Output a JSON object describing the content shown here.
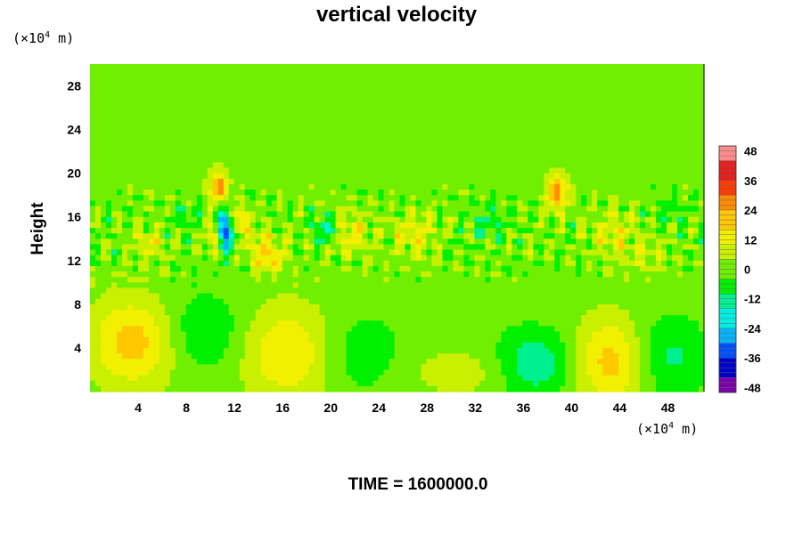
{
  "chart_data": {
    "type": "heatmap",
    "title": "vertical velocity",
    "ylabel": "Height",
    "x_unit": {
      "prefix": "(×10",
      "exp": "4",
      "suffix": " m)"
    },
    "y_unit": {
      "prefix": "(×10",
      "exp": "4",
      "suffix": " m)"
    },
    "xlim": [
      0,
      51
    ],
    "ylim": [
      0,
      30
    ],
    "x_ticks": [
      4,
      8,
      12,
      16,
      20,
      24,
      28,
      32,
      36,
      40,
      44,
      48
    ],
    "y_ticks": [
      4,
      8,
      12,
      16,
      20,
      24,
      28
    ],
    "colorbar": {
      "range": [
        -50,
        50
      ],
      "ticks": [
        48,
        36,
        24,
        12,
        0,
        -12,
        -24,
        -36,
        -48
      ],
      "colors_low_to_high": [
        "#7a00a8",
        "#0000c8",
        "#0050ff",
        "#00b4ff",
        "#00f0e6",
        "#00f090",
        "#00f000",
        "#70f000",
        "#c8f000",
        "#f0f000",
        "#ffc800",
        "#ff8c00",
        "#ff3c00",
        "#e61e1e",
        "#ff8c8c"
      ]
    },
    "field": {
      "background": 0,
      "blobs": [
        {
          "x": 3.5,
          "y": 4.5,
          "v": 20,
          "sx": 2.4,
          "sy": 2.8
        },
        {
          "x": 9.5,
          "y": 5.5,
          "v": -10,
          "sx": 2.2,
          "sy": 2.4
        },
        {
          "x": 16.5,
          "y": 3.5,
          "v": 17,
          "sx": 2.6,
          "sy": 3.0
        },
        {
          "x": 22.5,
          "y": 3.5,
          "v": -8,
          "sx": 2.6,
          "sy": 2.6
        },
        {
          "x": 31.0,
          "y": 1.8,
          "v": 7,
          "sx": 3.5,
          "sy": 1.6
        },
        {
          "x": 37.0,
          "y": 2.5,
          "v": -16,
          "sx": 2.4,
          "sy": 2.2
        },
        {
          "x": 43.5,
          "y": 2.8,
          "v": 22,
          "sx": 2.3,
          "sy": 2.8
        },
        {
          "x": 47.5,
          "y": 3.2,
          "v": -14,
          "sx": 2.4,
          "sy": 2.6
        },
        {
          "x": 10.7,
          "y": 18.8,
          "v": 26,
          "sx": 0.6,
          "sy": 1.0
        },
        {
          "x": 11.3,
          "y": 14.8,
          "v": -44,
          "sx": 0.45,
          "sy": 1.2
        },
        {
          "x": 12.3,
          "y": 15.6,
          "v": 20,
          "sx": 0.6,
          "sy": 0.9
        },
        {
          "x": 10.2,
          "y": 14.2,
          "v": 15,
          "sx": 0.6,
          "sy": 0.8
        },
        {
          "x": 19.8,
          "y": 14.8,
          "v": -18,
          "sx": 0.9,
          "sy": 0.9
        },
        {
          "x": 21.3,
          "y": 14.5,
          "v": 15,
          "sx": 1.2,
          "sy": 1.3
        },
        {
          "x": 15.0,
          "y": 12.0,
          "v": 14,
          "sx": 0.9,
          "sy": 0.8
        },
        {
          "x": 14.2,
          "y": 13.5,
          "v": 12,
          "sx": 1.0,
          "sy": 1.0
        },
        {
          "x": 38.8,
          "y": 18.2,
          "v": 24,
          "sx": 0.7,
          "sy": 1.2
        },
        {
          "x": 27.0,
          "y": 14.5,
          "v": 12,
          "sx": 1.3,
          "sy": 1.4
        },
        {
          "x": 43.5,
          "y": 14.5,
          "v": 10,
          "sx": 1.3,
          "sy": 1.5
        },
        {
          "x": 8.0,
          "y": 16.0,
          "v": -8,
          "sx": 0.9,
          "sy": 0.9
        },
        {
          "x": 33.0,
          "y": 15.5,
          "v": -8,
          "sx": 1.0,
          "sy": 1.0
        },
        {
          "x": 46.0,
          "y": 12.5,
          "v": 8,
          "sx": 1.2,
          "sy": 1.0
        },
        {
          "x": 5.0,
          "y": 13.5,
          "v": 10,
          "sx": 1.0,
          "sy": 1.0
        },
        {
          "x": 48.5,
          "y": 16.5,
          "v": -6,
          "sx": 1.0,
          "sy": 1.0
        }
      ]
    }
  },
  "footer": {
    "time_text": "TIME = 1600000.0"
  }
}
